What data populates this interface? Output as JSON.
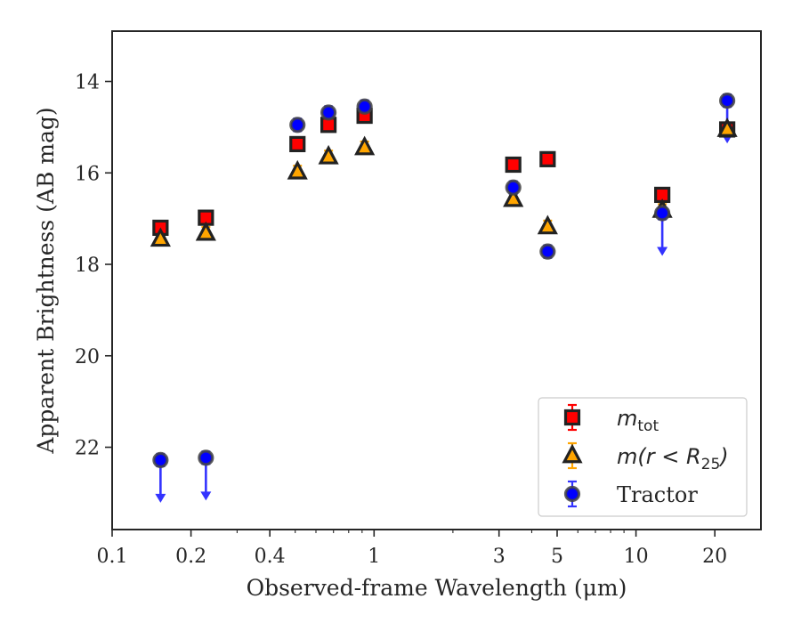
{
  "chart_data": {
    "type": "scatter",
    "title": "",
    "xlabel": "Observed-frame Wavelength (μm)",
    "ylabel": "Apparent Brightness (AB mag)",
    "xscale": "log",
    "xlim": [
      0.1,
      30
    ],
    "ylim": [
      23.8,
      12.9
    ],
    "y_inverted": true,
    "x_ticks": [
      0.1,
      0.2,
      0.4,
      1,
      3,
      5,
      10,
      20
    ],
    "x_tick_labels": [
      "0.1",
      "0.2",
      "0.4",
      "1",
      "3",
      "5",
      "10",
      "20"
    ],
    "y_ticks": [
      14,
      16,
      18,
      20,
      22
    ],
    "y_tick_labels": [
      "14",
      "16",
      "18",
      "20",
      "22"
    ],
    "grid": false,
    "legend": {
      "position": "lower-right"
    },
    "series": [
      {
        "key": "m_tot",
        "name": "m_tot",
        "label_main": "m",
        "label_sub": "tot",
        "marker": "square",
        "color": "#ff0000",
        "edge_color": "#222222",
        "error_color": "#ff0000",
        "points": [
          {
            "x": 0.153,
            "y": 17.2
          },
          {
            "x": 0.228,
            "y": 16.98
          },
          {
            "x": 0.51,
            "y": 15.37
          },
          {
            "x": 0.67,
            "y": 14.95
          },
          {
            "x": 0.92,
            "y": 14.75
          },
          {
            "x": 3.4,
            "y": 15.82
          },
          {
            "x": 4.6,
            "y": 15.7
          },
          {
            "x": 12.6,
            "y": 16.48
          },
          {
            "x": 22.3,
            "y": 15.05
          }
        ]
      },
      {
        "key": "m_r25",
        "name": "m(r < R25)",
        "label_main": "m(r < R",
        "label_sub": "25",
        "label_end": ")",
        "marker": "triangle",
        "color": "#ffa500",
        "edge_color": "#222222",
        "error_color": "#ffa500",
        "points": [
          {
            "x": 0.153,
            "y": 17.45
          },
          {
            "x": 0.228,
            "y": 17.32
          },
          {
            "x": 0.51,
            "y": 15.98
          },
          {
            "x": 0.67,
            "y": 15.65
          },
          {
            "x": 0.92,
            "y": 15.45
          },
          {
            "x": 3.4,
            "y": 16.58
          },
          {
            "x": 4.6,
            "y": 17.18
          },
          {
            "x": 12.6,
            "y": 16.82
          },
          {
            "x": 22.3,
            "y": 15.05
          }
        ]
      },
      {
        "key": "tractor",
        "name": "Tractor",
        "label_main": "Tractor",
        "marker": "circle",
        "color": "#0000ff",
        "edge_color": "#444444",
        "error_color": "#3333ff",
        "points": [
          {
            "x": 0.153,
            "y": 22.28,
            "upper_limit": true
          },
          {
            "x": 0.228,
            "y": 22.23,
            "upper_limit": true
          },
          {
            "x": 0.51,
            "y": 14.95
          },
          {
            "x": 0.67,
            "y": 14.68
          },
          {
            "x": 0.92,
            "y": 14.55
          },
          {
            "x": 3.4,
            "y": 16.32
          },
          {
            "x": 4.6,
            "y": 17.72
          },
          {
            "x": 12.6,
            "y": 16.88,
            "upper_limit": true
          },
          {
            "x": 22.3,
            "y": 14.42,
            "upper_limit": true
          }
        ]
      }
    ]
  }
}
